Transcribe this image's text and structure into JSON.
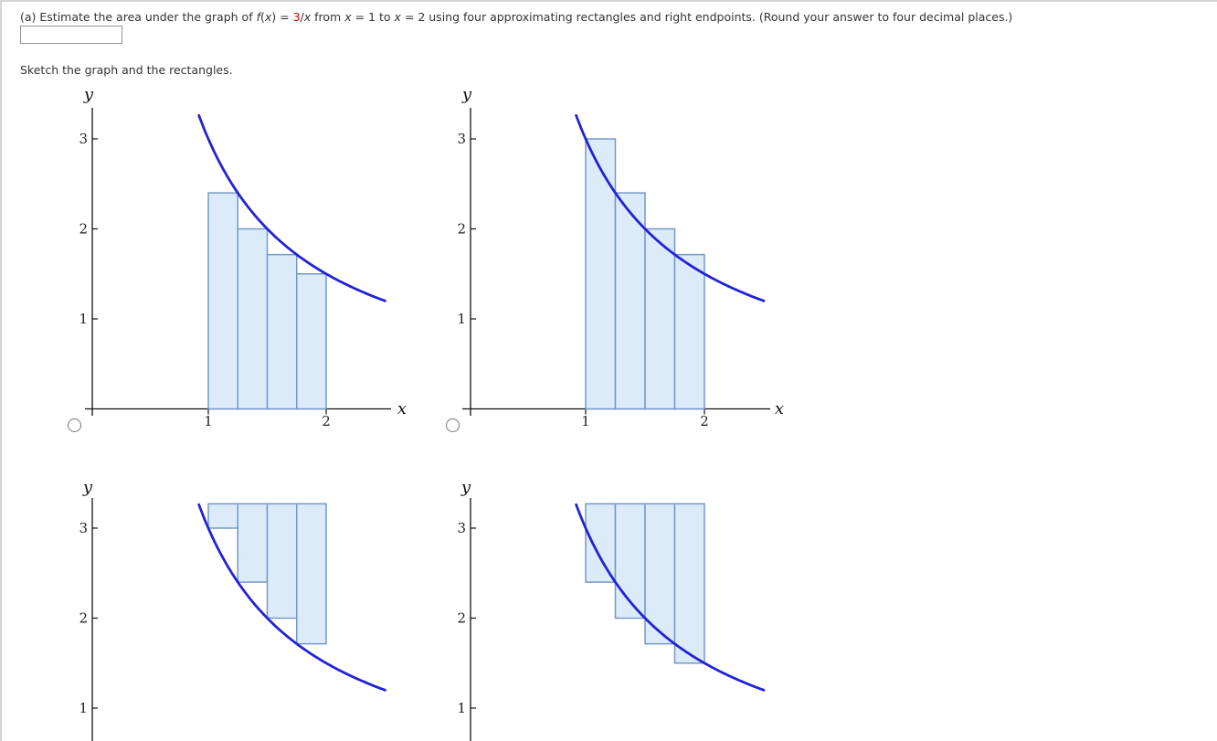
{
  "question": {
    "segments": [
      {
        "t": "(a) Estimate the area under the graph of ",
        "s": "plain"
      },
      {
        "t": "f",
        "s": "italic"
      },
      {
        "t": "(",
        "s": "plain"
      },
      {
        "t": "x",
        "s": "italic"
      },
      {
        "t": ") = ",
        "s": "plain"
      },
      {
        "t": "3",
        "s": "red"
      },
      {
        "t": "/",
        "s": "plain"
      },
      {
        "t": "x",
        "s": "italic"
      },
      {
        "t": " from ",
        "s": "plain"
      },
      {
        "t": "x",
        "s": "italic"
      },
      {
        "t": " = 1 to ",
        "s": "plain"
      },
      {
        "t": "x",
        "s": "italic"
      },
      {
        "t": " = 2 using four approximating rectangles and right endpoints. (Round your answer to four decimal places.)",
        "s": "plain"
      }
    ],
    "answer_input": {
      "value": "",
      "placeholder": ""
    }
  },
  "sketch_prompt": "Sketch the graph and the rectangles.",
  "graph_options": {
    "count": 4,
    "radios": [
      {
        "id": "radio-option-1",
        "selected": false
      },
      {
        "id": "radio-option-2",
        "selected": false
      }
    ]
  },
  "colors": {
    "curve": "#2222d6",
    "rect_fill": "#dcebf9",
    "rect_stroke": "#7598c8",
    "axis": "#111111",
    "tick_text": "#222222",
    "question_text": "#333333",
    "accent_red": "#cc0000",
    "panel_border": "#d4d4d4",
    "radio_border": "#757575"
  },
  "chart_data": [
    {
      "id": "option-1",
      "position": "top-left",
      "type": "area",
      "title": "f(x) = 3/x with right-endpoint rectangles under the curve",
      "function": "f(x) = 3/x",
      "coefficient": 3,
      "curve_x_range": [
        0.92,
        2.5
      ],
      "x_ticks": [
        1,
        2
      ],
      "y_ticks": [
        1,
        2,
        3
      ],
      "xlabel": "x",
      "ylabel": "y",
      "rectangles": [
        {
          "x0": 1.0,
          "x1": 1.25,
          "y0": 0,
          "y1": 2.4
        },
        {
          "x0": 1.25,
          "x1": 1.5,
          "y0": 0,
          "y1": 2.0
        },
        {
          "x0": 1.5,
          "x1": 1.75,
          "y0": 0,
          "y1": 1.7143
        },
        {
          "x0": 1.75,
          "x1": 2.0,
          "y0": 0,
          "y1": 1.5
        }
      ]
    },
    {
      "id": "option-2",
      "position": "top-right",
      "type": "area",
      "title": "f(x) = 3/x with left-endpoint rectangles over the curve",
      "function": "f(x) = 3/x",
      "coefficient": 3,
      "curve_x_range": [
        0.92,
        2.5
      ],
      "x_ticks": [
        1,
        2
      ],
      "y_ticks": [
        1,
        2,
        3
      ],
      "xlabel": "x",
      "ylabel": "y",
      "rectangles": [
        {
          "x0": 1.0,
          "x1": 1.25,
          "y0": 0,
          "y1": 3.0
        },
        {
          "x0": 1.25,
          "x1": 1.5,
          "y0": 0,
          "y1": 2.4
        },
        {
          "x0": 1.5,
          "x1": 1.75,
          "y0": 0,
          "y1": 2.0
        },
        {
          "x0": 1.75,
          "x1": 2.0,
          "y0": 0,
          "y1": 1.7143
        }
      ]
    },
    {
      "id": "option-3",
      "position": "bottom-left",
      "type": "area",
      "title": "f(x) = 3/x with rectangles hanging from the top down to left endpoints (plot cut off at page bottom)",
      "function": "f(x) = 3/x",
      "coefficient": 3,
      "curve_x_range": [
        0.92,
        2.5
      ],
      "x_ticks": [],
      "y_ticks": [
        1,
        2,
        3
      ],
      "xlabel": "",
      "ylabel": "y",
      "rectangles": [
        {
          "x0": 1.0,
          "x1": 1.25,
          "y0": 3.0,
          "y1": 3.27
        },
        {
          "x0": 1.25,
          "x1": 1.5,
          "y0": 2.4,
          "y1": 3.27
        },
        {
          "x0": 1.5,
          "x1": 1.75,
          "y0": 2.0,
          "y1": 3.27
        },
        {
          "x0": 1.75,
          "x1": 2.0,
          "y0": 1.7143,
          "y1": 3.27
        }
      ]
    },
    {
      "id": "option-4",
      "position": "bottom-right",
      "type": "area",
      "title": "f(x) = 3/x with rectangles hanging from the top down to right endpoints (plot cut off at page bottom)",
      "function": "f(x) = 3/x",
      "coefficient": 3,
      "curve_x_range": [
        0.92,
        2.5
      ],
      "x_ticks": [],
      "y_ticks": [
        1,
        2,
        3
      ],
      "xlabel": "",
      "ylabel": "y",
      "rectangles": [
        {
          "x0": 1.0,
          "x1": 1.25,
          "y0": 2.4,
          "y1": 3.27
        },
        {
          "x0": 1.25,
          "x1": 1.5,
          "y0": 2.0,
          "y1": 3.27
        },
        {
          "x0": 1.5,
          "x1": 1.75,
          "y0": 1.7143,
          "y1": 3.27
        },
        {
          "x0": 1.75,
          "x1": 2.0,
          "y0": 1.5,
          "y1": 3.27
        }
      ]
    }
  ]
}
